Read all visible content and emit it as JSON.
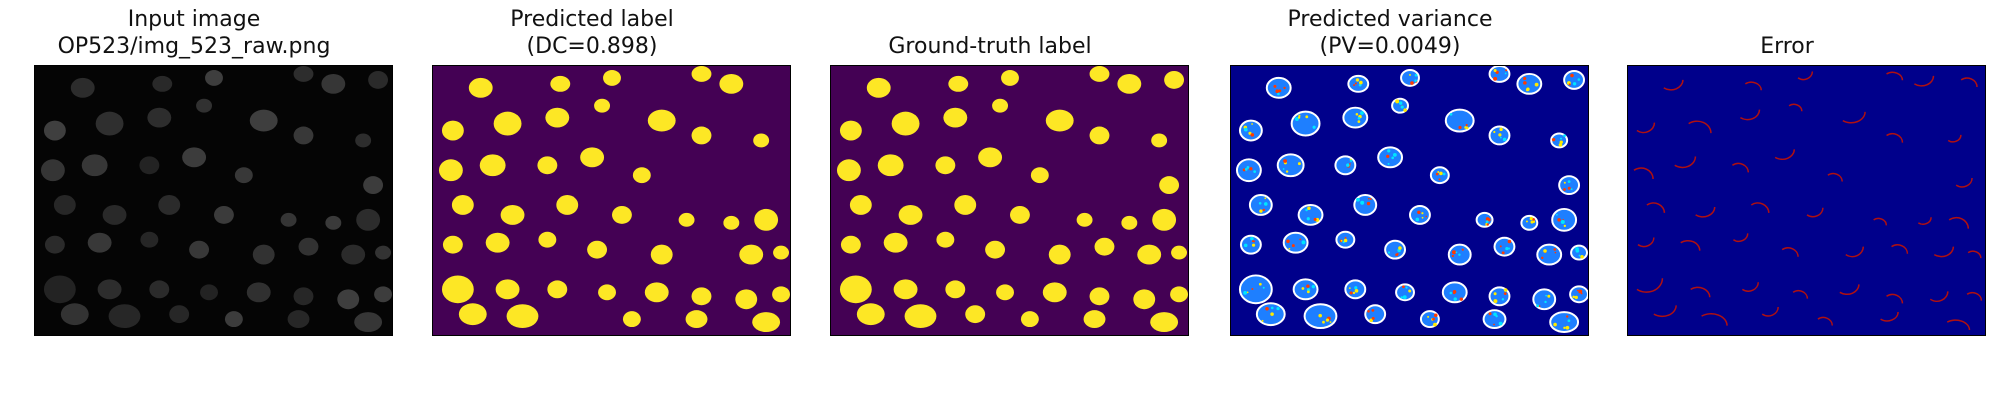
{
  "figure": {
    "panels": [
      {
        "id": "input",
        "title_line1": "Input image",
        "title_line2": "OP523/img_523_raw.png",
        "background": "#050505",
        "cell_fill": "#5a5a5a",
        "colormap": "gray"
      },
      {
        "id": "predicted-label",
        "title_line1": "Predicted label",
        "title_line2": "(DC=0.898)",
        "background": "#440154",
        "cell_fill": "#fde725",
        "colormap": "viridis"
      },
      {
        "id": "ground-truth",
        "title_line1": "",
        "title_line2": "Ground-truth label",
        "background": "#440154",
        "cell_fill": "#fde725",
        "colormap": "viridis"
      },
      {
        "id": "predicted-variance",
        "title_line1": "Predicted variance",
        "title_line2": "(PV=0.0049)",
        "background": "#00008b",
        "cell_fill": "#1e7fff",
        "ring_color": "#ffffff",
        "speckle_colors": [
          "#ffea00",
          "#ff3b00",
          "#00e5ff"
        ],
        "colormap": "jet"
      },
      {
        "id": "error",
        "title_line1": "",
        "title_line2": "Error",
        "background": "#00008b",
        "ring_color": "#b01010",
        "colormap": "jet"
      }
    ]
  }
}
